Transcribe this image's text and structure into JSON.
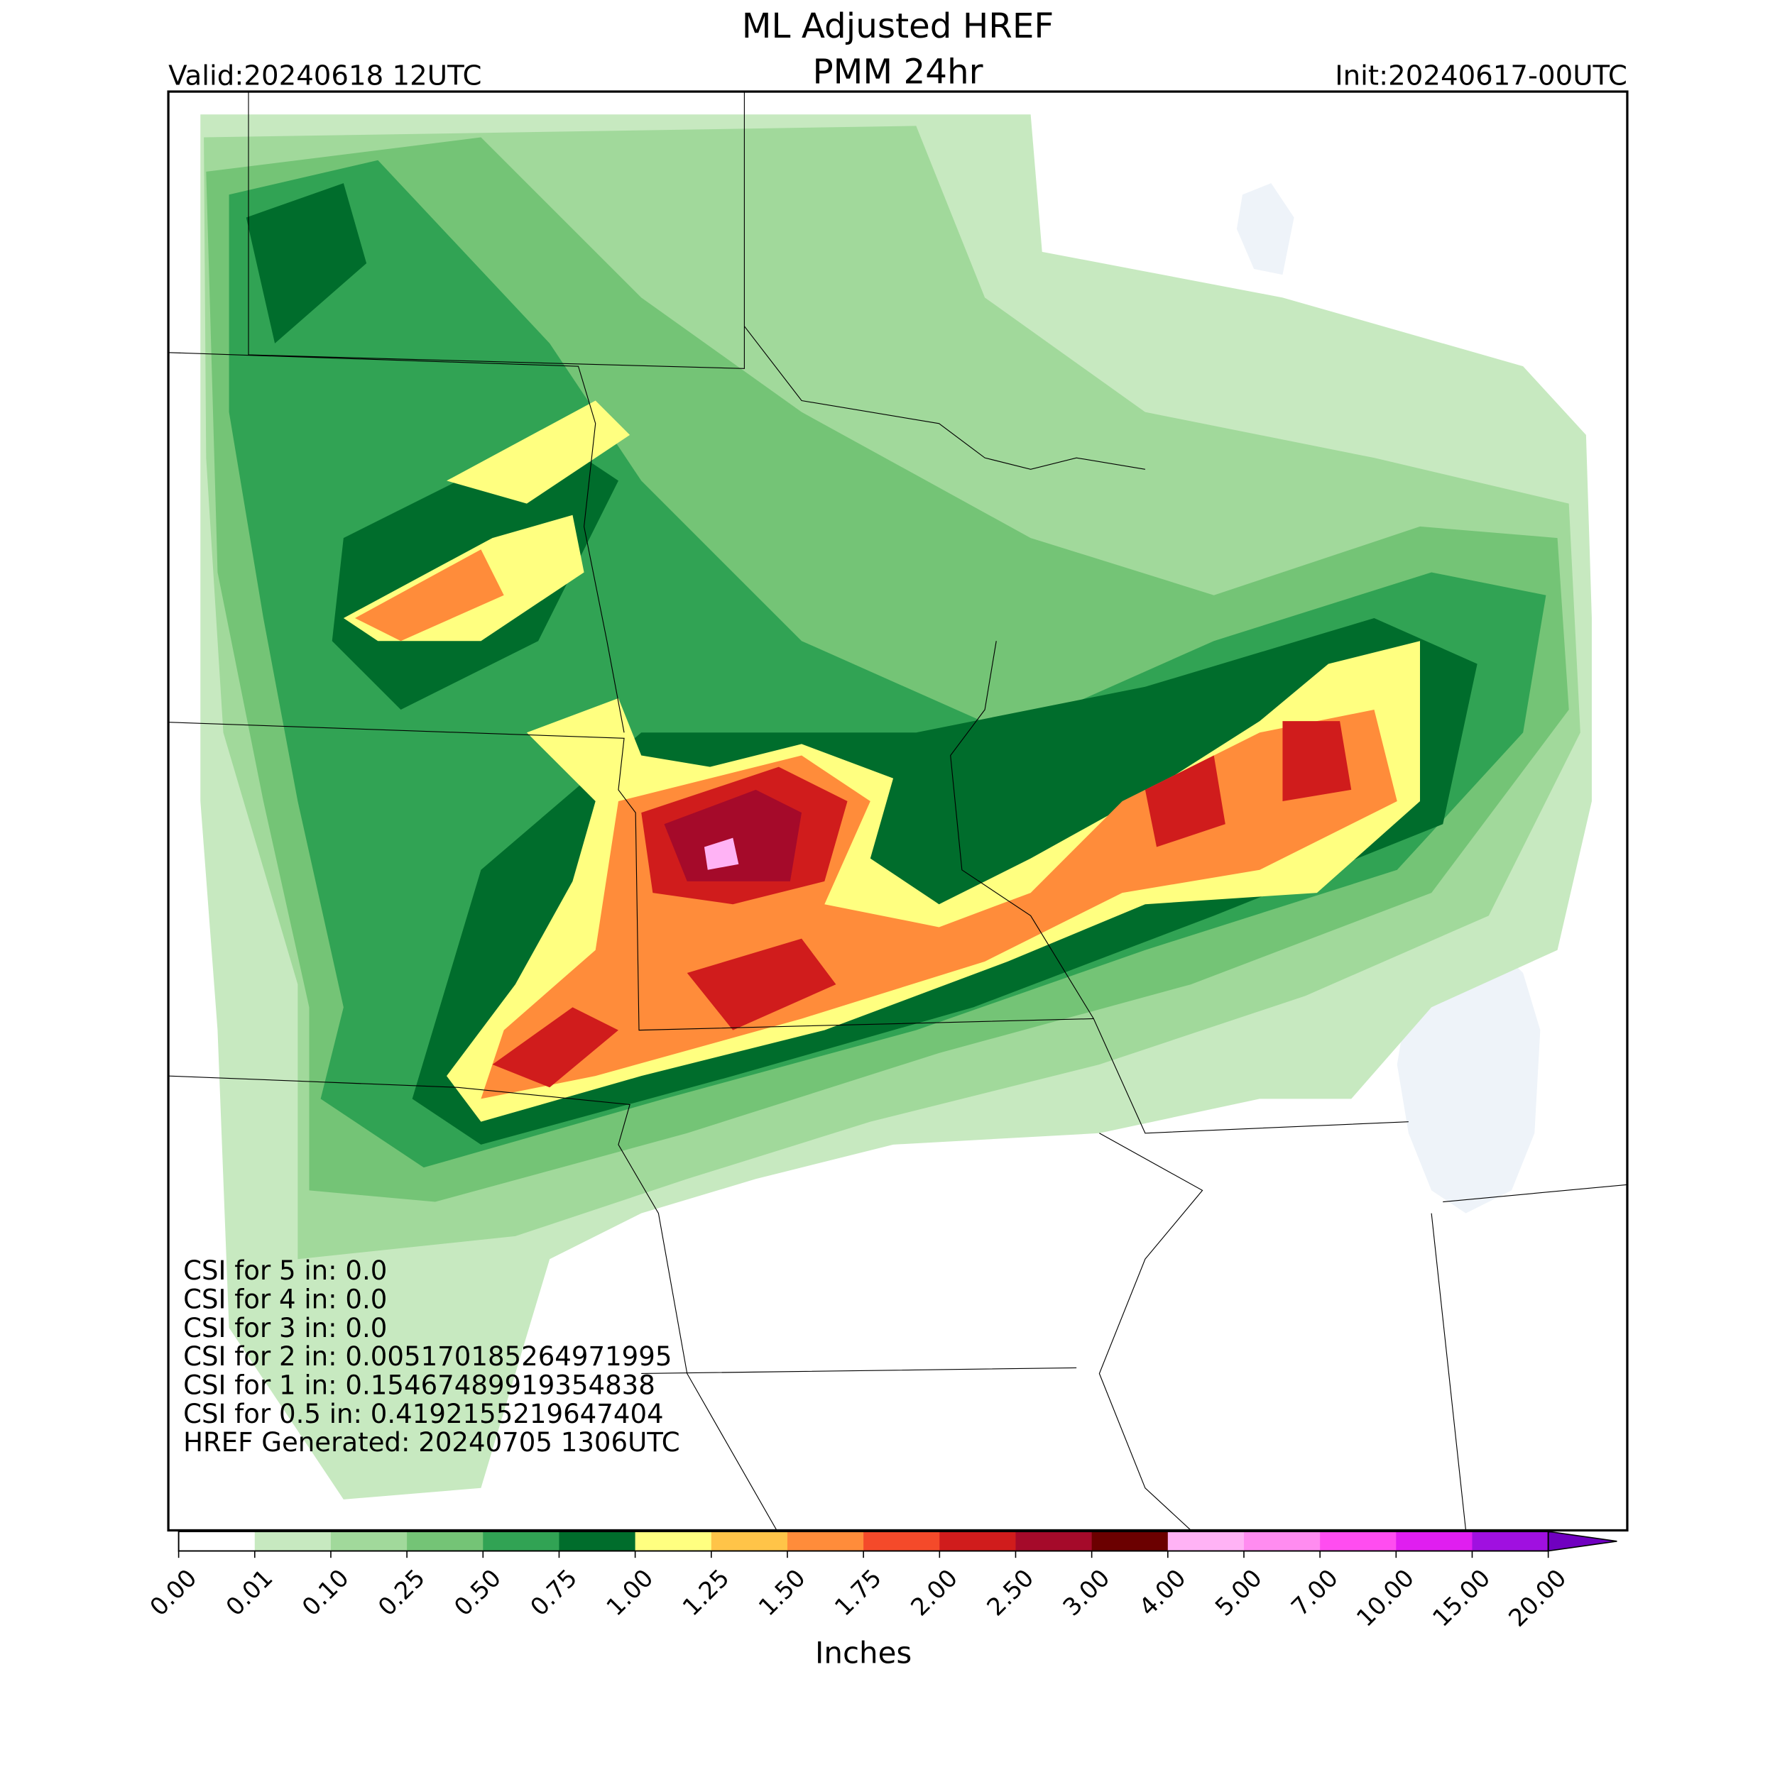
{
  "header": {
    "title": [
      "ML Adjusted HREF",
      "PMM 24hr"
    ],
    "valid": "Valid:20240618 12UTC",
    "init": "Init:20240617-00UTC"
  },
  "stats": {
    "lines": [
      "CSI for 5 in: 0.0",
      "CSI for 4 in: 0.0",
      "CSI for 3 in: 0.0",
      "CSI for 2 in: 0.005170185264971995",
      "CSI for 1 in: 0.15467489919354838",
      "CSI for 0.5 in: 0.4192155219647404",
      "HREF Generated: 20240705 1306UTC"
    ]
  },
  "colorbar": {
    "label": "Inches",
    "ticks": [
      {
        "value": 0,
        "label": "0.00"
      },
      {
        "value": 0.01,
        "label": "0.01"
      },
      {
        "value": 0.1,
        "label": "0.10"
      },
      {
        "value": 0.25,
        "label": "0.25"
      },
      {
        "value": 0.5,
        "label": "0.50"
      },
      {
        "value": 0.75,
        "label": "0.75"
      },
      {
        "value": 1,
        "label": "1.00"
      },
      {
        "value": 1.25,
        "label": "1.25"
      },
      {
        "value": 1.5,
        "label": "1.50"
      },
      {
        "value": 1.75,
        "label": "1.75"
      },
      {
        "value": 2,
        "label": "2.00"
      },
      {
        "value": 2.5,
        "label": "2.50"
      },
      {
        "value": 3,
        "label": "3.00"
      },
      {
        "value": 4,
        "label": "4.00"
      },
      {
        "value": 5,
        "label": "5.00"
      },
      {
        "value": 7,
        "label": "7.00"
      },
      {
        "value": 10,
        "label": "10.00"
      },
      {
        "value": 15,
        "label": "15.00"
      },
      {
        "value": 20,
        "label": "20.00"
      }
    ],
    "colors": [
      "#ffffff",
      "#c7e9c0",
      "#a1d99b",
      "#74c476",
      "#31a354",
      "#006d2c",
      "#ffff80",
      "#ffc448",
      "#ff8c3a",
      "#f44a2a",
      "#d01c1c",
      "#a50a2a",
      "#6b0000",
      "#ffb3f5",
      "#ff8cf0",
      "#ff4df0",
      "#e01ef0",
      "#a010e0"
    ],
    "extend_color": "#7000c0"
  }
}
